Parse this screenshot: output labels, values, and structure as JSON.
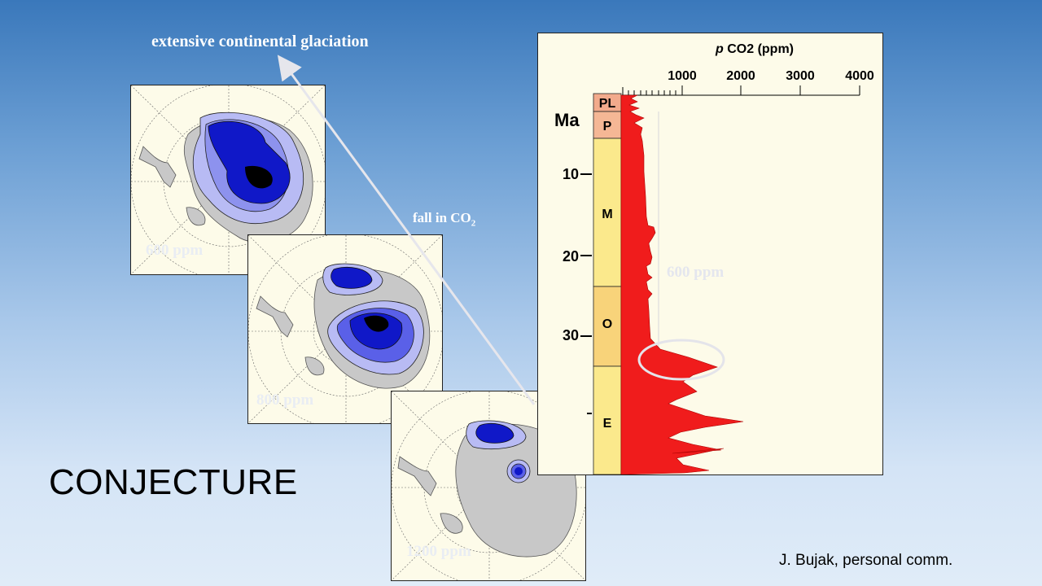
{
  "slide": {
    "glaciation_label": "extensive continental glaciation",
    "fall_label": "fall in CO",
    "fall_sub": "2",
    "conjecture": "CONJECTURE",
    "credit": "J. Bujak, personal comm."
  },
  "maps": [
    {
      "ppm_label": "600 ppm"
    },
    {
      "ppm_label": "800 ppm"
    },
    {
      "ppm_label": "1200 ppm"
    }
  ],
  "chart": {
    "ppm_label": "600 ppm",
    "xlabel_italic": "p",
    "xlabel": " CO2 (ppm)",
    "x_ticks": [
      "1000",
      "2000",
      "3000",
      "4000"
    ],
    "ylabel": "Ma",
    "y_ticks": [
      "10",
      "20",
      "30"
    ],
    "epochs": [
      "PL",
      "P",
      "M",
      "O",
      "E"
    ]
  },
  "colors": {
    "curve": "#f01c1c",
    "epoch_pl": "#f2aa8c",
    "epoch_p": "#f5b795",
    "epoch_m": "#fbe98c",
    "epoch_o": "#f8d37a",
    "epoch_e": "#fbe98c",
    "ice_dark": "#1018c8",
    "ice_mid": "#5a60e8",
    "ice_light": "#b8bbf4",
    "land": "#c8c8c8"
  }
}
